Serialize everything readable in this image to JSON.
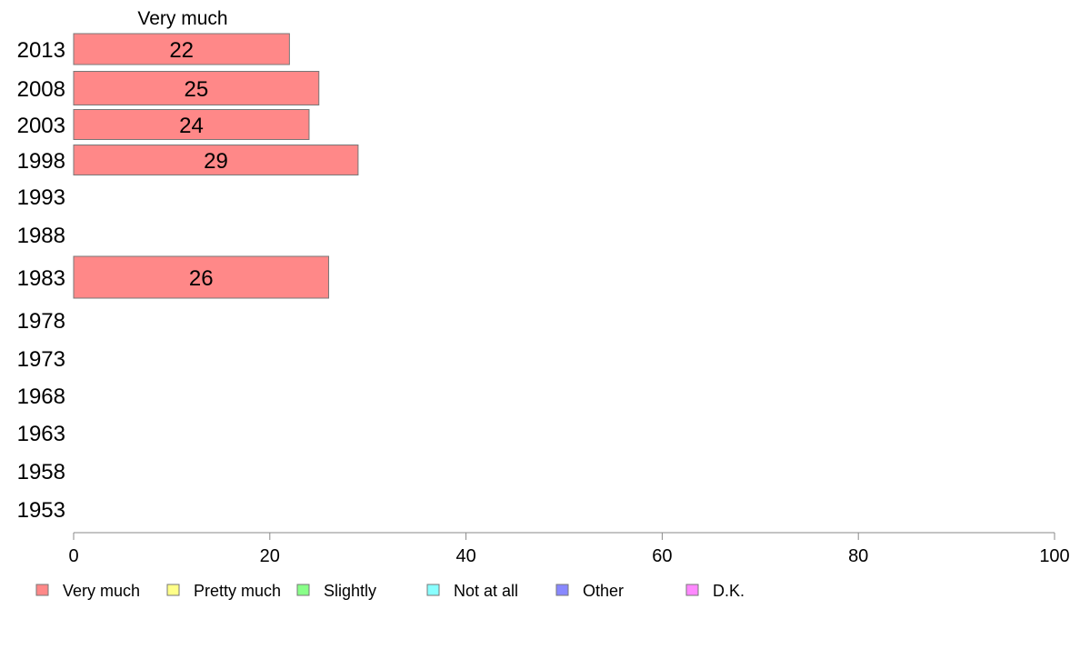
{
  "chart_data": {
    "type": "bar",
    "orientation": "horizontal",
    "stacked": true,
    "categories": [
      "2013",
      "2008",
      "2003",
      "1998",
      "1993",
      "1988",
      "1983",
      "1978",
      "1973",
      "1968",
      "1963",
      "1958",
      "1953"
    ],
    "series": [
      {
        "name": "Very much",
        "color": "#ff8888",
        "values": [
          22,
          25,
          24,
          29,
          null,
          null,
          26,
          null,
          null,
          null,
          null,
          null,
          null
        ]
      }
    ],
    "series_label_top": "Very much",
    "xlim": [
      0,
      100
    ],
    "xticks": [
      0,
      20,
      40,
      60,
      80,
      100
    ],
    "grid": false,
    "legend": {
      "placement": "bottom",
      "items": [
        {
          "label": "Very much",
          "color": "#ff8888"
        },
        {
          "label": "Pretty much",
          "color": "#ffff88"
        },
        {
          "label": "Slightly",
          "color": "#88ff88"
        },
        {
          "label": "Not at all",
          "color": "#88ffff"
        },
        {
          "label": "Other",
          "color": "#8888ff"
        },
        {
          "label": "D.K.",
          "color": "#ff88ff"
        }
      ]
    }
  }
}
